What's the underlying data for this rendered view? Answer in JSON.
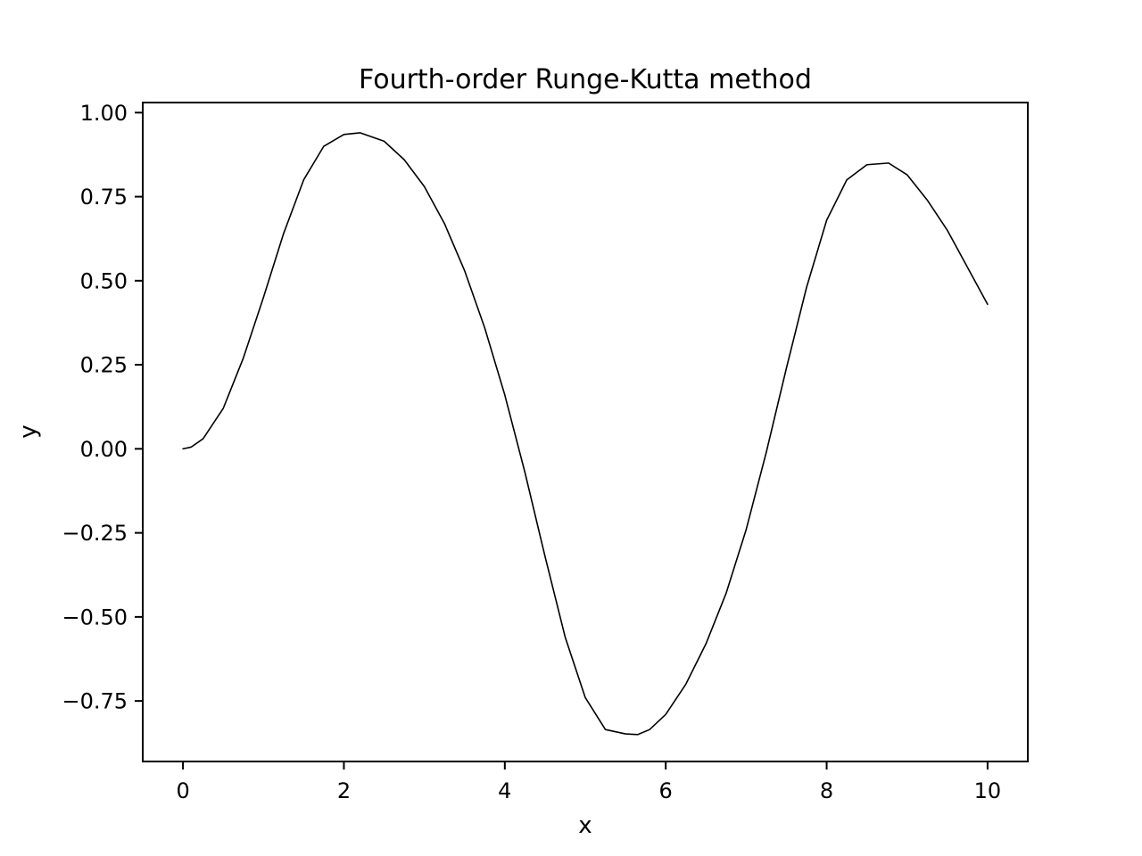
{
  "chart_data": {
    "type": "line",
    "title": "Fourth-order Runge-Kutta method",
    "xlabel": "x",
    "ylabel": "y",
    "xlim": [
      -0.5,
      10.5
    ],
    "ylim": [
      -0.93,
      1.03
    ],
    "xticks": [
      0,
      2,
      4,
      6,
      8,
      10
    ],
    "xtick_labels": [
      "0",
      "2",
      "4",
      "6",
      "8",
      "10"
    ],
    "yticks": [
      1.0,
      0.75,
      0.5,
      0.25,
      0.0,
      -0.25,
      -0.5,
      -0.75
    ],
    "ytick_labels": [
      "1.00",
      "0.75",
      "0.50",
      "0.25",
      "0.00",
      "−0.25",
      "−0.50",
      "−0.75"
    ],
    "grid": false,
    "series": [
      {
        "color": "#000000",
        "x": [
          0,
          0.1,
          0.25,
          0.5,
          0.75,
          1.0,
          1.25,
          1.5,
          1.75,
          2.0,
          2.2,
          2.5,
          2.75,
          3.0,
          3.25,
          3.5,
          3.75,
          4.0,
          4.25,
          4.5,
          4.75,
          5.0,
          5.25,
          5.5,
          5.65,
          5.8,
          6.0,
          6.25,
          6.5,
          6.75,
          7.0,
          7.25,
          7.5,
          7.75,
          8.0,
          8.25,
          8.5,
          8.77,
          9.0,
          9.25,
          9.5,
          9.75,
          10.0
        ],
        "y": [
          0.0,
          0.005,
          0.03,
          0.12,
          0.27,
          0.45,
          0.64,
          0.8,
          0.9,
          0.935,
          0.94,
          0.915,
          0.86,
          0.78,
          0.67,
          0.53,
          0.36,
          0.16,
          -0.07,
          -0.32,
          -0.56,
          -0.74,
          -0.835,
          -0.848,
          -0.85,
          -0.835,
          -0.79,
          -0.7,
          -0.58,
          -0.43,
          -0.24,
          -0.01,
          0.24,
          0.48,
          0.68,
          0.8,
          0.845,
          0.85,
          0.815,
          0.74,
          0.65,
          0.54,
          0.43
        ]
      }
    ]
  }
}
